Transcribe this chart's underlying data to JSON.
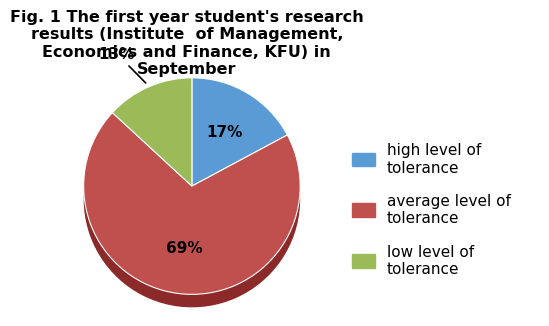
{
  "title": "Fig. 1 The first year student's research\nresults (Institute  of Management,\nEconomics and Finance, KFU) in\nSeptember",
  "slices": [
    17,
    69,
    13
  ],
  "labels": [
    "17%",
    "69%",
    "13%"
  ],
  "colors": [
    "#5B9BD5",
    "#C0504D",
    "#9BBB59"
  ],
  "shadow_colors": [
    "#3a6a9a",
    "#8b2a28",
    "#6a8a30"
  ],
  "legend_labels": [
    "high level of\ntolerance",
    "average level of\ntolerance",
    "low level of\ntolerance"
  ],
  "startangle": 90,
  "background_color": "#ffffff",
  "title_fontsize": 11.5,
  "label_fontsize": 11,
  "legend_fontsize": 11
}
